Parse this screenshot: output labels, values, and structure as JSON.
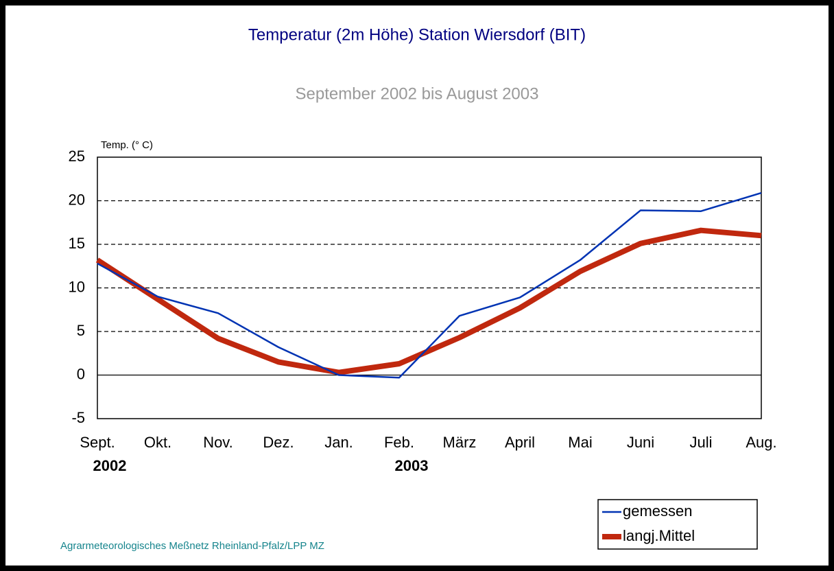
{
  "chart_data": {
    "type": "line",
    "title": "Temperatur  (2m Höhe) Station Wiersdorf (BIT)",
    "subtitle": "September 2002 bis August 2003",
    "y_label": "Temp. (° C)",
    "footer": "Agrarmeteorologisches Meßnetz Rheinland-Pfalz/LPP MZ",
    "categories": [
      "Sept.",
      "Okt.",
      "Nov.",
      "Dez.",
      "Jan.",
      "Feb.",
      "März",
      "April",
      "Mai",
      "Juni",
      "Juli",
      "Aug."
    ],
    "annotations": [
      {
        "text": "2002",
        "x": "Sept."
      },
      {
        "text": "2003",
        "x": "Feb."
      }
    ],
    "series": [
      {
        "name": "gemessen",
        "color": "#0033b3",
        "width": 2.5,
        "values": [
          12.8,
          9.0,
          7.1,
          3.2,
          0.0,
          -0.3,
          6.8,
          8.9,
          13.2,
          18.9,
          18.8,
          20.9
        ]
      },
      {
        "name": "langj.Mittel",
        "color": "#c0280e",
        "width": 8,
        "values": [
          13.2,
          8.7,
          4.2,
          1.5,
          0.3,
          1.3,
          4.3,
          7.7,
          11.9,
          15.1,
          16.6,
          16.0
        ]
      }
    ],
    "ylim": [
      -5,
      25
    ],
    "yticks": [
      -5,
      0,
      5,
      10,
      15,
      20,
      25
    ],
    "grid": true,
    "legend": "bottom-right"
  }
}
